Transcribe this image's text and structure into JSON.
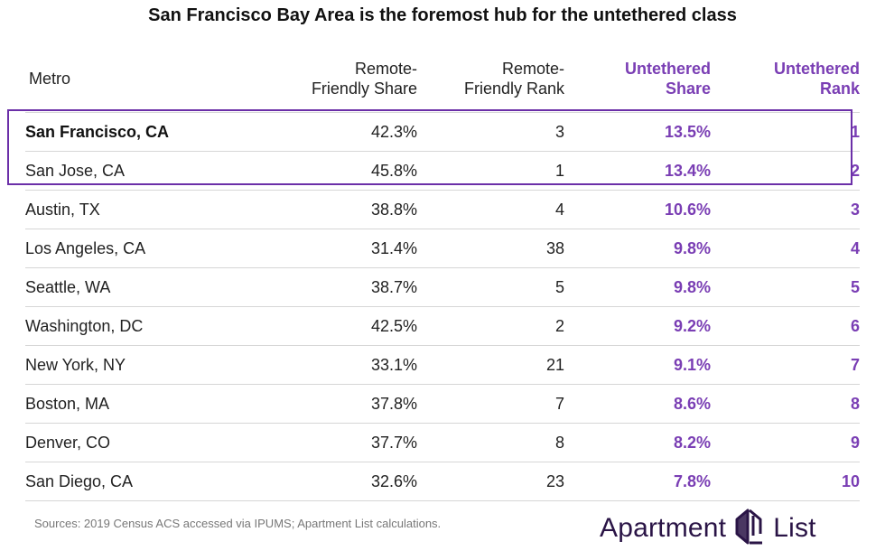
{
  "title": "San Francisco Bay Area is the foremost hub for the untethered class",
  "chart_data": {
    "type": "table",
    "columns": [
      "Metro",
      "Remote-\nFriendly Share",
      "Remote-\nFriendly Rank",
      "Untethered\nShare",
      "Untethered\nRank"
    ],
    "rows": [
      [
        "San Francisco, CA",
        "42.3%",
        "3",
        "13.5%",
        "1"
      ],
      [
        "San Jose, CA",
        "45.8%",
        "1",
        "13.4%",
        "2"
      ],
      [
        "Austin, TX",
        "38.8%",
        "4",
        "10.6%",
        "3"
      ],
      [
        "Los Angeles, CA",
        "31.4%",
        "38",
        "9.8%",
        "4"
      ],
      [
        "Seattle, WA",
        "38.7%",
        "5",
        "9.8%",
        "5"
      ],
      [
        "Washington, DC",
        "42.5%",
        "2",
        "9.2%",
        "6"
      ],
      [
        "New York, NY",
        "33.1%",
        "21",
        "9.1%",
        "7"
      ],
      [
        "Boston, MA",
        "37.8%",
        "7",
        "8.6%",
        "8"
      ],
      [
        "Denver, CO",
        "37.7%",
        "8",
        "8.2%",
        "9"
      ],
      [
        "San Diego, CA",
        "32.6%",
        "23",
        "7.8%",
        "10"
      ]
    ],
    "highlighted_rows": [
      0,
      1
    ],
    "accent_color": "#7a3eb4",
    "highlight_border_color": "#6b2fa8"
  },
  "source": "Sources: 2019 Census ACS accessed via IPUMS; Apartment List calculations.",
  "logo": {
    "word1": "Apartment",
    "word2": "List",
    "icon": "apartment-list-logo-icon",
    "color": "#2a1446"
  }
}
